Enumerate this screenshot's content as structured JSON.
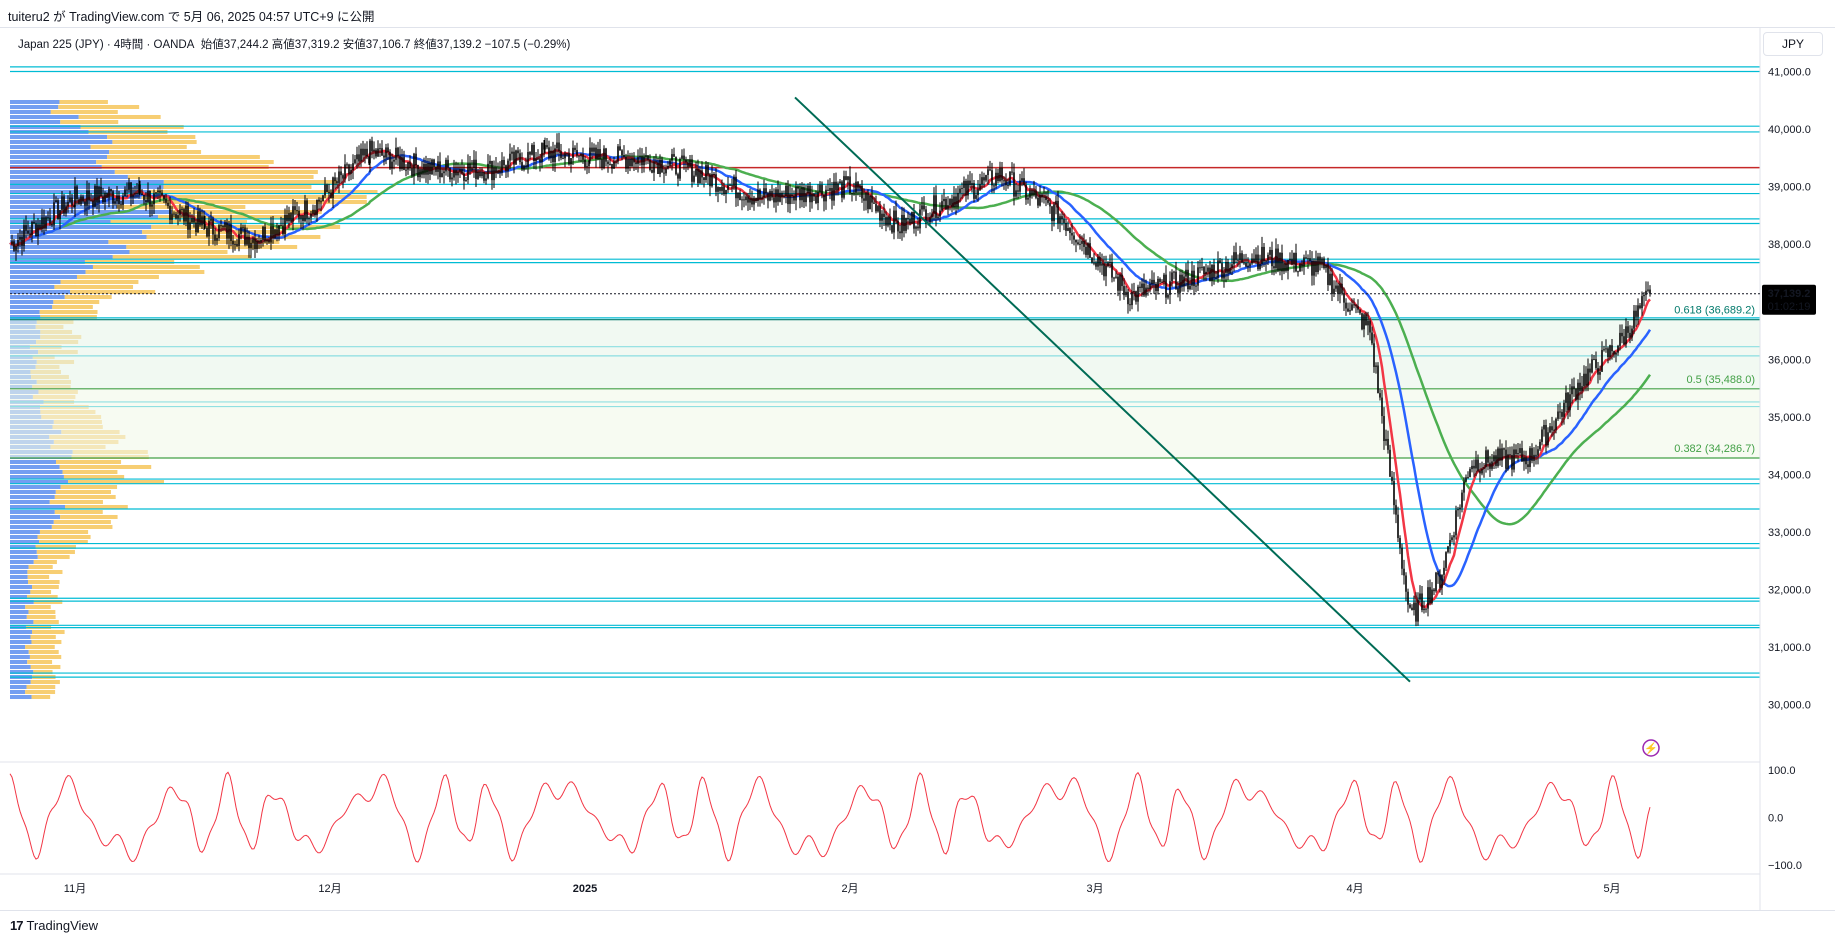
{
  "header": {
    "published_text": "tuiteru2 が TradingView.com で 5月 06, 2025 04:57 UTC+9 に公開"
  },
  "legend": {
    "symbol": "Japan 225 (JPY) · 4時間 · OANDA",
    "open": "始値37,244.2",
    "high": "高値37,319.2",
    "low": "安値37,106.7",
    "close": "終値37,139.2",
    "change": "−107.5 (−0.29%)"
  },
  "currency_button": "JPY",
  "price_label": {
    "price": "37,139.2",
    "countdown": "01:02:19"
  },
  "footer": {
    "logo_mark": "17",
    "brand": "TradingView"
  },
  "alert_icon": "lightning-icon",
  "colors": {
    "candle": "#000000",
    "ma_red": "#f23645",
    "ma_blue": "#2962ff",
    "ma_green": "#4caf50",
    "ma_purple": "#9c27b0",
    "hline": "#00bcd4",
    "resistance": "#c62828",
    "trend": "#006b55",
    "oscillator": "#f23645",
    "vp_up": "#5b8def",
    "vp_down": "#f6c65b"
  },
  "chart_data": {
    "type": "line",
    "title": "Japan 225 (JPY) · 4時間 · OANDA",
    "x_ticks": [
      "11月",
      "12月",
      "2025",
      "2月",
      "3月",
      "4月",
      "5月"
    ],
    "y_ticks": [
      "41,000.0",
      "40,000.0",
      "39,000.0",
      "38,000.0",
      "37,000.0",
      "36,000.0",
      "35,000.0",
      "34,000.0",
      "33,000.0",
      "32,000.0",
      "31,000.0",
      "30,000.0"
    ],
    "ylim": [
      29700,
      41200
    ],
    "x": [
      "10-25",
      "11-01",
      "11-08",
      "11-15",
      "11-22",
      "11-29",
      "12-06",
      "12-13",
      "12-20",
      "12-27",
      "01-03",
      "01-10",
      "01-17",
      "01-24",
      "01-31",
      "02-07",
      "02-14",
      "02-21",
      "02-28",
      "03-07",
      "03-14",
      "03-21",
      "03-28",
      "04-03",
      "04-07",
      "04-10",
      "04-14",
      "04-21",
      "04-28",
      "05-02",
      "05-06"
    ],
    "series": [
      {
        "values": [
          38000,
          38800,
          38900,
          38300,
          38100,
          38700,
          39600,
          39300,
          39300,
          39600,
          39500,
          39500,
          39300,
          38800,
          39000,
          38300,
          38800,
          39200,
          38500,
          37100,
          37400,
          37800,
          37600,
          36500,
          31500,
          32200,
          34200,
          34300,
          35600,
          36300,
          37139.2
        ]
      }
    ],
    "oscillator": {
      "y_ticks": [
        "100.0",
        "0.0",
        "−100.0"
      ],
      "ylim": [
        -110,
        110
      ]
    },
    "fibonacci": [
      {
        "label": "0.618 (36,689.2)",
        "price": 36689.2
      },
      {
        "label": "0.5 (35,488.0)",
        "price": 35488.0
      },
      {
        "label": "0.382 (34,286.7)",
        "price": 34286.7
      }
    ],
    "horizontal_levels": [
      41080,
      41000,
      40050,
      39950,
      39040,
      38880,
      38440,
      38360,
      37740,
      37680,
      36720,
      36220,
      36060,
      35260,
      35180,
      33920,
      33840,
      33400,
      32800,
      32720,
      31850,
      31800,
      31380,
      31340,
      30550,
      30480
    ],
    "resistance_level": 39330,
    "trendline": {
      "from": [
        "01-22",
        40550
      ],
      "to": [
        "04-07",
        30400
      ]
    }
  }
}
